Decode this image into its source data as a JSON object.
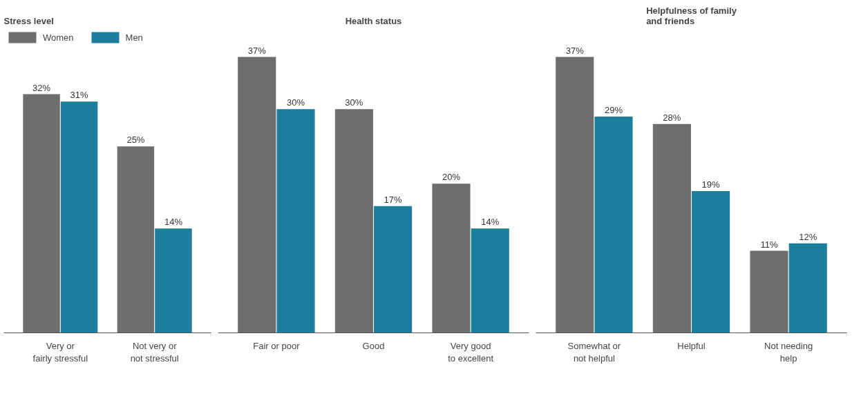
{
  "chart_data": [
    {
      "type": "bar",
      "title": "Stress level",
      "categories": [
        "Very or\nfairly stressful",
        "Not very or\nnot stressful"
      ],
      "legend": "top left",
      "series": [
        {
          "name": "Women",
          "color": "#6e6e6e",
          "values": [
            32,
            25
          ],
          "value_labels": [
            "32%",
            "25%"
          ]
        },
        {
          "name": "Men",
          "color": "#1c7d9c",
          "values": [
            31,
            14
          ],
          "value_labels": [
            "31%",
            "14%"
          ]
        }
      ]
    },
    {
      "type": "bar",
      "title": "Health status",
      "categories": [
        "Fair or poor",
        "Good",
        "Very good\nto excellent"
      ],
      "series": [
        {
          "color": "#6e6e6e",
          "values": [
            37,
            30,
            20
          ],
          "value_labels": [
            "37%",
            "30%",
            "20%"
          ]
        },
        {
          "color": "#1c7d9c",
          "values": [
            30,
            17,
            14
          ],
          "value_labels": [
            "30%",
            "17%",
            "14%"
          ]
        }
      ]
    },
    {
      "type": "bar",
      "title": "Helpfulness of family\nand friends",
      "categories": [
        "Somewhat or\nnot helpful",
        "Helpful",
        "Not needing\nhelp"
      ],
      "series": [
        {
          "color": "#6e6e6e",
          "values": [
            37,
            28,
            11
          ],
          "value_labels": [
            "37%",
            "28%",
            "11%"
          ]
        },
        {
          "color": "#1c7d9c",
          "values": [
            29,
            19,
            12
          ],
          "value_labels": [
            "29%",
            "19%",
            "12%"
          ]
        }
      ]
    }
  ]
}
